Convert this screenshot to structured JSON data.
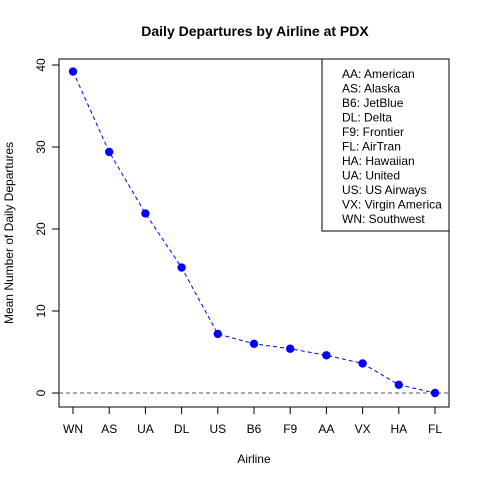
{
  "chart_data": {
    "type": "line",
    "title": "Daily Departures by Airline at PDX",
    "xlabel": "Airline",
    "ylabel": "Mean Number of Daily Departures",
    "categories": [
      "WN",
      "AS",
      "UA",
      "DL",
      "US",
      "B6",
      "F9",
      "AA",
      "VX",
      "HA",
      "FL"
    ],
    "series": [
      {
        "values": [
          39.2,
          29.4,
          21.9,
          15.3,
          7.2,
          6.0,
          5.4,
          4.6,
          3.6,
          1.0,
          0.0
        ],
        "color": "#0000ff",
        "line_style": "dashed"
      }
    ],
    "ylim": [
      0,
      40
    ],
    "yticks": [
      0,
      10,
      20,
      30,
      40
    ],
    "reference_line": {
      "y": 0,
      "color": "#555555",
      "line_style": "dashed"
    },
    "legend": {
      "placement": "top-right",
      "entries": [
        "AA: American",
        "AS: Alaska",
        "B6: JetBlue",
        "DL: Delta",
        "F9: Frontier",
        "FL: AirTran",
        "HA: Hawaiian",
        "UA: United",
        "US: US Airways",
        "VX: Virgin America",
        "WN: Southwest"
      ]
    }
  }
}
